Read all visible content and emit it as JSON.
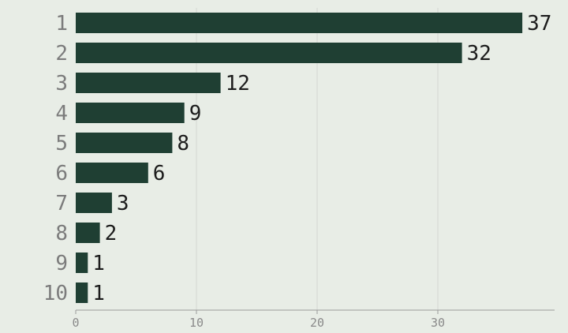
{
  "chart_data": {
    "type": "bar",
    "orientation": "horizontal",
    "categories": [
      "1",
      "2",
      "3",
      "4",
      "5",
      "6",
      "7",
      "8",
      "9",
      "10"
    ],
    "values": [
      37,
      32,
      12,
      9,
      8,
      6,
      3,
      2,
      1,
      1
    ],
    "xlim": [
      0,
      40
    ],
    "x_ticks": [
      0,
      10,
      20,
      30
    ],
    "grid": "vertical",
    "legend": "none",
    "bar_color": "#1f3f33"
  }
}
